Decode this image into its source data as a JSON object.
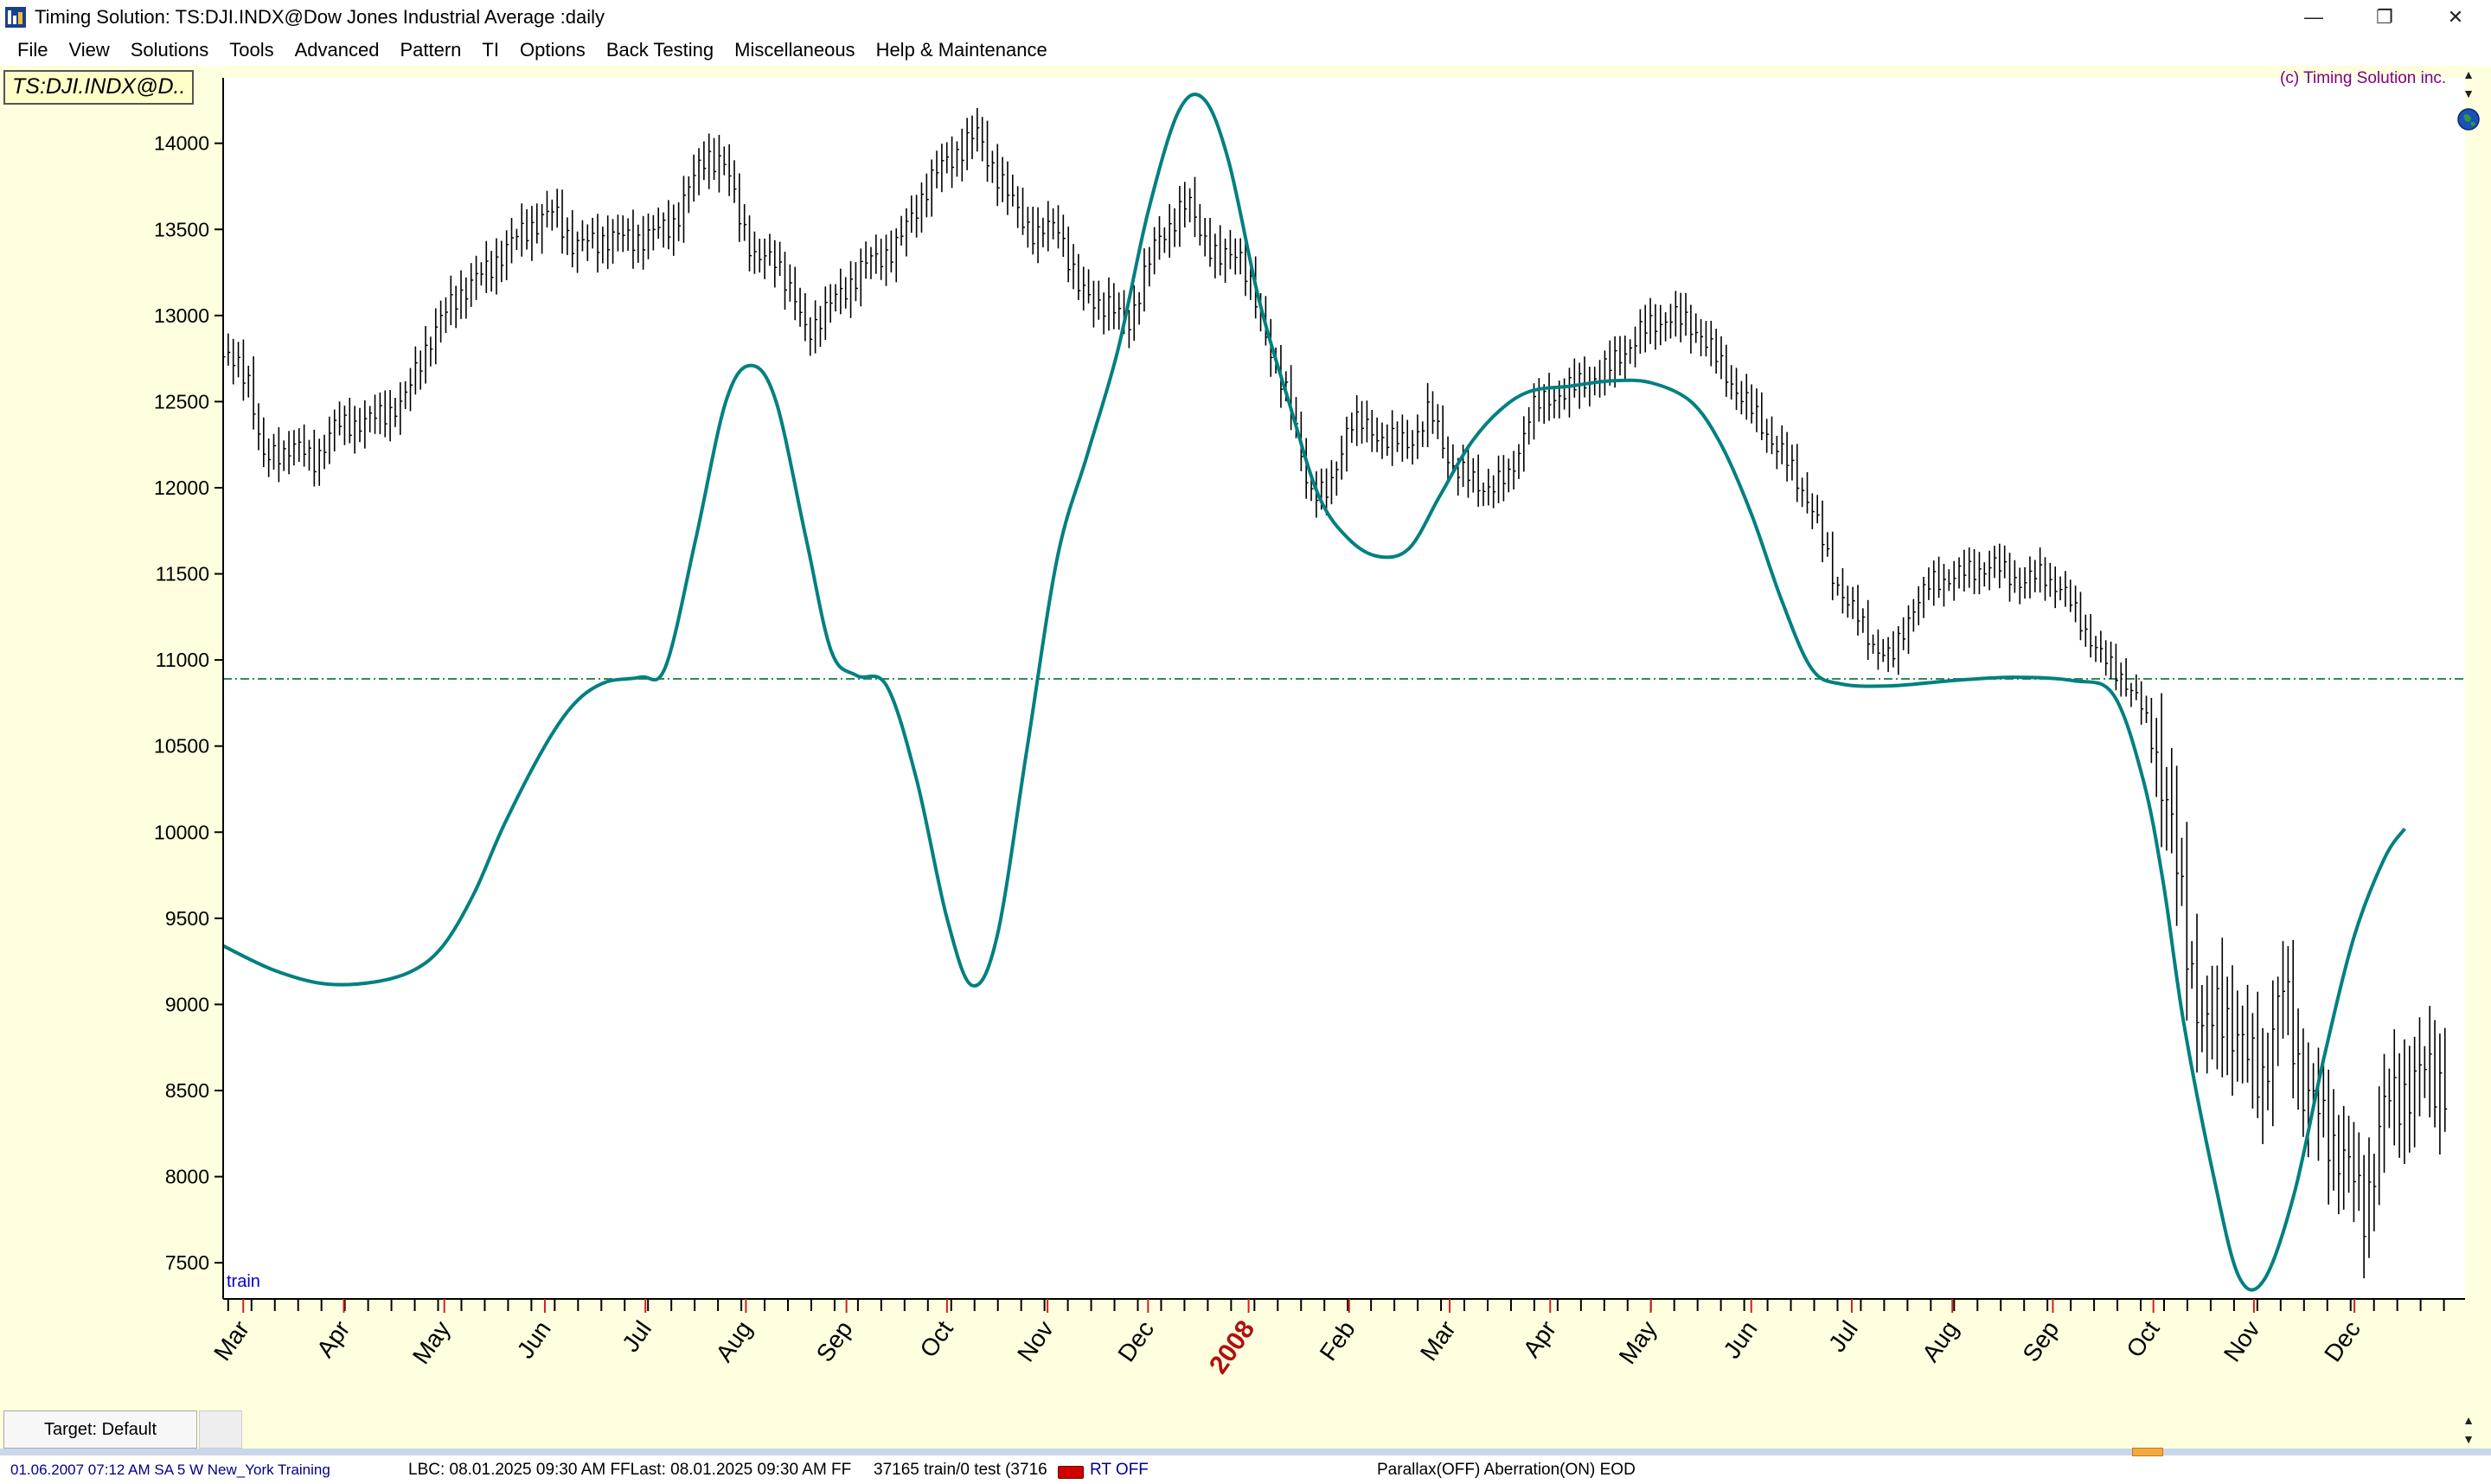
{
  "window": {
    "title": "Timing Solution:  TS:DJI.INDX@Dow Jones Industrial Average  :daily",
    "controls": [
      "minimize",
      "restore",
      "close"
    ]
  },
  "menu": [
    "File",
    "View",
    "Solutions",
    "Tools",
    "Advanced",
    "Pattern",
    "TI",
    "Options",
    "Back Testing",
    "Miscellaneous",
    "Help & Maintenance"
  ],
  "chart": {
    "symbol_label": "TS:DJI.INDX@D..",
    "copyright": "(c) Timing Solution inc.",
    "region_label": "train",
    "background": "#ffffe0",
    "price_bar_color": "#000000",
    "projection_color": "#008080",
    "reference_line_color": "#2e8b57"
  },
  "chart_data": {
    "type": "line",
    "y_ticks": [
      7500,
      8000,
      8500,
      9000,
      9500,
      10000,
      10500,
      11000,
      11500,
      12000,
      12500,
      13000,
      13500,
      14000
    ],
    "ylim": [
      7290,
      14380
    ],
    "xlim": [
      0,
      22.3
    ],
    "x_month_labels": [
      {
        "label": "Mar",
        "x": 0.2
      },
      {
        "label": "Apr",
        "x": 1.2
      },
      {
        "label": "May",
        "x": 2.2
      },
      {
        "label": "Jun",
        "x": 3.2
      },
      {
        "label": "Jul",
        "x": 4.2
      },
      {
        "label": "Aug",
        "x": 5.2
      },
      {
        "label": "Sep",
        "x": 6.2
      },
      {
        "label": "Oct",
        "x": 7.2
      },
      {
        "label": "Nov",
        "x": 8.2
      },
      {
        "label": "Dec",
        "x": 9.2
      },
      {
        "label": "2008",
        "x": 10.2,
        "year": true
      },
      {
        "label": "Feb",
        "x": 11.2
      },
      {
        "label": "Mar",
        "x": 12.2
      },
      {
        "label": "Apr",
        "x": 13.2
      },
      {
        "label": "May",
        "x": 14.2
      },
      {
        "label": "Jun",
        "x": 15.2
      },
      {
        "label": "Jul",
        "x": 16.2
      },
      {
        "label": "Aug",
        "x": 17.2
      },
      {
        "label": "Sep",
        "x": 18.2
      },
      {
        "label": "Oct",
        "x": 19.2
      },
      {
        "label": "Nov",
        "x": 20.2
      },
      {
        "label": "Dec",
        "x": 21.2
      }
    ],
    "reference_level": 10890,
    "price_series": {
      "name": "TS:DJI.INDX",
      "close_path": [
        [
          0.0,
          12760
        ],
        [
          0.25,
          12650
        ],
        [
          0.4,
          12150
        ],
        [
          0.7,
          12250
        ],
        [
          0.9,
          12150
        ],
        [
          1.1,
          12350
        ],
        [
          1.5,
          12400
        ],
        [
          1.8,
          12500
        ],
        [
          2.0,
          12800
        ],
        [
          2.3,
          13100
        ],
        [
          2.6,
          13250
        ],
        [
          3.0,
          13500
        ],
        [
          3.3,
          13600
        ],
        [
          3.5,
          13400
        ],
        [
          3.8,
          13450
        ],
        [
          4.2,
          13450
        ],
        [
          4.5,
          13550
        ],
        [
          4.8,
          13950
        ],
        [
          5.0,
          13850
        ],
        [
          5.3,
          13300
        ],
        [
          5.5,
          13350
        ],
        [
          5.8,
          12900
        ],
        [
          6.1,
          13100
        ],
        [
          6.4,
          13300
        ],
        [
          6.7,
          13400
        ],
        [
          7.0,
          13750
        ],
        [
          7.2,
          13900
        ],
        [
          7.5,
          14050
        ],
        [
          7.8,
          13700
        ],
        [
          8.1,
          13450
        ],
        [
          8.3,
          13550
        ],
        [
          8.5,
          13150
        ],
        [
          8.8,
          13050
        ],
        [
          9.0,
          12950
        ],
        [
          9.3,
          13450
        ],
        [
          9.6,
          13650
        ],
        [
          9.9,
          13300
        ],
        [
          10.1,
          13400
        ],
        [
          10.3,
          13000
        ],
        [
          10.6,
          12500
        ],
        [
          10.8,
          12000
        ],
        [
          11.0,
          11950
        ],
        [
          11.2,
          12400
        ],
        [
          11.5,
          12300
        ],
        [
          11.8,
          12250
        ],
        [
          12.0,
          12450
        ],
        [
          12.2,
          12150
        ],
        [
          12.5,
          12000
        ],
        [
          12.8,
          12050
        ],
        [
          13.0,
          12450
        ],
        [
          13.3,
          12550
        ],
        [
          13.5,
          12600
        ],
        [
          13.8,
          12700
        ],
        [
          14.1,
          12900
        ],
        [
          14.4,
          13000
        ],
        [
          14.7,
          12900
        ],
        [
          14.9,
          12700
        ],
        [
          15.2,
          12450
        ],
        [
          15.5,
          12200
        ],
        [
          15.8,
          11900
        ],
        [
          16.0,
          11500
        ],
        [
          16.2,
          11300
        ],
        [
          16.4,
          11100
        ],
        [
          16.6,
          11000
        ],
        [
          16.8,
          11300
        ],
        [
          17.0,
          11450
        ],
        [
          17.3,
          11500
        ],
        [
          17.6,
          11550
        ],
        [
          17.9,
          11450
        ],
        [
          18.1,
          11500
        ],
        [
          18.3,
          11400
        ],
        [
          18.5,
          11200
        ],
        [
          18.7,
          11000
        ],
        [
          18.9,
          10900
        ],
        [
          19.1,
          10700
        ],
        [
          19.3,
          10300
        ],
        [
          19.5,
          9500
        ],
        [
          19.7,
          8800
        ],
        [
          19.9,
          9000
        ],
        [
          20.1,
          8700
        ],
        [
          20.3,
          8600
        ],
        [
          20.5,
          9100
        ],
        [
          20.7,
          8500
        ],
        [
          20.9,
          8300
        ],
        [
          21.1,
          8100
        ],
        [
          21.3,
          7800
        ],
        [
          21.5,
          8400
        ],
        [
          21.7,
          8500
        ],
        [
          21.9,
          8600
        ],
        [
          22.1,
          8550
        ]
      ]
    },
    "projection_line": {
      "points": [
        [
          0.0,
          9340
        ],
        [
          0.5,
          9200
        ],
        [
          1.0,
          9120
        ],
        [
          1.5,
          9130
        ],
        [
          1.9,
          9200
        ],
        [
          2.2,
          9350
        ],
        [
          2.5,
          9650
        ],
        [
          2.8,
          10050
        ],
        [
          3.2,
          10500
        ],
        [
          3.5,
          10750
        ],
        [
          3.8,
          10870
        ],
        [
          4.15,
          10900
        ],
        [
          4.4,
          10960
        ],
        [
          4.7,
          11700
        ],
        [
          5.0,
          12500
        ],
        [
          5.25,
          12710
        ],
        [
          5.5,
          12500
        ],
        [
          5.8,
          11700
        ],
        [
          6.05,
          11050
        ],
        [
          6.3,
          10910
        ],
        [
          6.6,
          10850
        ],
        [
          6.9,
          10300
        ],
        [
          7.2,
          9500
        ],
        [
          7.45,
          9110
        ],
        [
          7.7,
          9400
        ],
        [
          8.0,
          10500
        ],
        [
          8.3,
          11600
        ],
        [
          8.6,
          12200
        ],
        [
          8.9,
          12800
        ],
        [
          9.2,
          13600
        ],
        [
          9.5,
          14180
        ],
        [
          9.75,
          14260
        ],
        [
          10.0,
          13900
        ],
        [
          10.3,
          13100
        ],
        [
          10.6,
          12500
        ],
        [
          10.9,
          11950
        ],
        [
          11.2,
          11700
        ],
        [
          11.5,
          11600
        ],
        [
          11.8,
          11650
        ],
        [
          12.1,
          11950
        ],
        [
          12.4,
          12250
        ],
        [
          12.7,
          12450
        ],
        [
          13.0,
          12560
        ],
        [
          13.4,
          12590
        ],
        [
          13.8,
          12620
        ],
        [
          14.2,
          12610
        ],
        [
          14.6,
          12500
        ],
        [
          14.9,
          12250
        ],
        [
          15.2,
          11850
        ],
        [
          15.5,
          11350
        ],
        [
          15.8,
          10950
        ],
        [
          16.1,
          10860
        ],
        [
          16.6,
          10850
        ],
        [
          17.2,
          10880
        ],
        [
          17.8,
          10900
        ],
        [
          18.4,
          10880
        ],
        [
          18.8,
          10800
        ],
        [
          19.1,
          10300
        ],
        [
          19.3,
          9700
        ],
        [
          19.5,
          8900
        ],
        [
          19.8,
          8000
        ],
        [
          20.05,
          7420
        ],
        [
          20.3,
          7400
        ],
        [
          20.6,
          7900
        ],
        [
          20.9,
          8700
        ],
        [
          21.2,
          9400
        ],
        [
          21.5,
          9850
        ],
        [
          21.7,
          10020
        ]
      ]
    }
  },
  "target_tab": {
    "label": "Target: Default"
  },
  "status": {
    "time": "01.06.2007  07:12 AM SA   5 W New_York  Training",
    "lbc": "LBC: 08.01.2025  09:30 AM FFLast: 08.01.2025  09:30 AM FF",
    "train": "37165 train/0 test (3716",
    "rt": "RT OFF",
    "mode": "Parallax(OFF) Aberration(ON) EOD"
  }
}
